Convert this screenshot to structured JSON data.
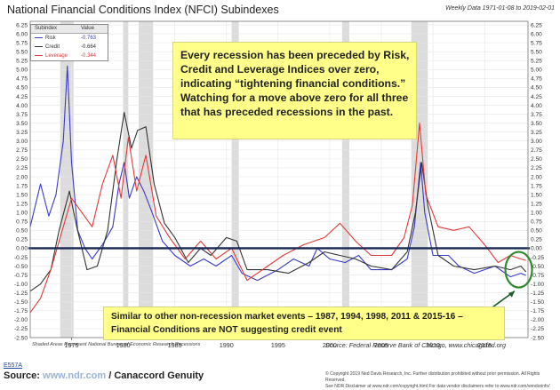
{
  "header": {
    "title": "National Financial Conditions Index (NFCI) Subindexes",
    "date_range": "Weekly Data 1971-01-08 to 2019-02-01"
  },
  "legend": {
    "col_subindex": "Subindex",
    "col_value": "Value",
    "rows": [
      {
        "name": "Risk",
        "value": "-0.763",
        "color": "#3a3ac8"
      },
      {
        "name": "Credit",
        "value": "-0.664",
        "color": "#333333"
      },
      {
        "name": "Leverage",
        "value": "-0.344",
        "color": "#e03a3a"
      }
    ]
  },
  "annotations": {
    "top_note": "Every recession has been preceded by Risk, Credit and Leverage Indices over zero, indicating “tightening financial conditions.”  Watching for a move above zero for all three that has preceded recessions in the past.",
    "bottom_note": "Similar to other non-recession market events – 1987, 1994, 1998, 2011 & 2015-16 – Financial Conditions are NOT suggesting credit event",
    "shaded_note": "Shaded Areas Represent National Bureau of Economic Research Recessions",
    "chart_source": "Source:   Federal Reserve Bank of Chicago, www.chicagofed.org"
  },
  "footer": {
    "code": "E557A",
    "source_label": "Source:",
    "source_link": "www.ndr.com",
    "source_rest": "/ Canaccord Genuity",
    "copyright_1": "© Copyright 2019 Ned Davis Research, Inc. Further distribution prohibited without prior permission. All Rights Reserved.",
    "copyright_2": "See NDR Disclaimer at www.ndr.com/copyright.html  For data vendor disclaimers refer to www.ndr.com/vendorinfo/"
  },
  "chart_data": {
    "type": "line",
    "x_ticks": [
      "1975",
      "1980",
      "1985",
      "1990",
      "1995",
      "2000",
      "2005",
      "2010",
      "2015"
    ],
    "y_ticks": [
      "6.25",
      "6.00",
      "5.75",
      "5.50",
      "5.25",
      "5.00",
      "4.75",
      "4.50",
      "4.25",
      "4.00",
      "3.75",
      "3.50",
      "3.25",
      "3.00",
      "2.75",
      "2.50",
      "2.25",
      "2.00",
      "1.75",
      "1.50",
      "1.25",
      "1.00",
      "0.75",
      "0.50",
      "0.25",
      "0.00",
      "-0.25",
      "-0.50",
      "-0.75",
      "-1.00",
      "-1.25",
      "-1.50",
      "-1.75",
      "-2.00",
      "-2.25",
      "-2.50"
    ],
    "xlim": [
      1971,
      2019.2
    ],
    "ylim": [
      -2.5,
      6.35
    ],
    "zero_line": 0,
    "grid": true,
    "recessions": [
      [
        1973.9,
        1975.2
      ],
      [
        1980.0,
        1980.5
      ],
      [
        1981.5,
        1982.9
      ],
      [
        1990.5,
        1991.2
      ],
      [
        2001.2,
        2001.9
      ],
      [
        2007.9,
        2009.5
      ]
    ],
    "series": [
      {
        "name": "Risk",
        "color": "#3a3ac8",
        "points": [
          [
            1971,
            0.6
          ],
          [
            1972,
            1.8
          ],
          [
            1972.8,
            0.9
          ],
          [
            1973.5,
            1.5
          ],
          [
            1974.2,
            3.0
          ],
          [
            1974.6,
            5.1
          ],
          [
            1975,
            2.4
          ],
          [
            1975.6,
            0.5
          ],
          [
            1976.3,
            0.0
          ],
          [
            1977,
            -0.3
          ],
          [
            1978,
            0.1
          ],
          [
            1979,
            0.6
          ],
          [
            1979.6,
            1.8
          ],
          [
            1980.1,
            2.4
          ],
          [
            1980.6,
            1.4
          ],
          [
            1981.3,
            2.0
          ],
          [
            1982,
            1.6
          ],
          [
            1982.8,
            1.0
          ],
          [
            1983.8,
            0.2
          ],
          [
            1985,
            -0.2
          ],
          [
            1986.5,
            -0.5
          ],
          [
            1987.8,
            -0.3
          ],
          [
            1989,
            -0.5
          ],
          [
            1990.5,
            -0.2
          ],
          [
            1991.5,
            -0.7
          ],
          [
            1993,
            -0.9
          ],
          [
            1995,
            -0.6
          ],
          [
            1996.5,
            -0.3
          ],
          [
            1998,
            -0.5
          ],
          [
            1998.8,
            0.0
          ],
          [
            2000,
            -0.3
          ],
          [
            2001.5,
            -0.4
          ],
          [
            2002.8,
            -0.2
          ],
          [
            2004,
            -0.6
          ],
          [
            2006,
            -0.6
          ],
          [
            2007.5,
            -0.3
          ],
          [
            2008.2,
            0.6
          ],
          [
            2008.8,
            2.4
          ],
          [
            2009.2,
            1.0
          ],
          [
            2010,
            -0.2
          ],
          [
            2011.5,
            -0.2
          ],
          [
            2012.5,
            -0.5
          ],
          [
            2014,
            -0.7
          ],
          [
            2016,
            -0.5
          ],
          [
            2017.5,
            -0.8
          ],
          [
            2018.5,
            -0.7
          ],
          [
            2019,
            -0.76
          ]
        ]
      },
      {
        "name": "Credit",
        "color": "#333333",
        "points": [
          [
            1971,
            -1.2
          ],
          [
            1972,
            -1.0
          ],
          [
            1973,
            -0.6
          ],
          [
            1973.8,
            0.5
          ],
          [
            1974.8,
            1.6
          ],
          [
            1975.5,
            0.6
          ],
          [
            1976.5,
            -0.6
          ],
          [
            1977.5,
            -0.5
          ],
          [
            1978.5,
            0.5
          ],
          [
            1979.4,
            2.5
          ],
          [
            1980.1,
            3.8
          ],
          [
            1980.8,
            2.8
          ],
          [
            1981.4,
            3.3
          ],
          [
            1982.2,
            3.4
          ],
          [
            1983,
            1.8
          ],
          [
            1984,
            0.7
          ],
          [
            1985,
            0.3
          ],
          [
            1986.3,
            -0.4
          ],
          [
            1987.5,
            0.0
          ],
          [
            1988.5,
            -0.2
          ],
          [
            1990,
            0.3
          ],
          [
            1991,
            0.2
          ],
          [
            1992,
            -0.6
          ],
          [
            1994,
            -0.6
          ],
          [
            1996,
            -0.7
          ],
          [
            1998,
            -0.4
          ],
          [
            1999.5,
            -0.1
          ],
          [
            2001,
            -0.2
          ],
          [
            2002.5,
            -0.3
          ],
          [
            2004,
            -0.5
          ],
          [
            2006,
            -0.6
          ],
          [
            2007.5,
            -0.1
          ],
          [
            2008.3,
            1.0
          ],
          [
            2008.9,
            2.4
          ],
          [
            2009.5,
            1.2
          ],
          [
            2010.5,
            -0.2
          ],
          [
            2012,
            -0.5
          ],
          [
            2014,
            -0.6
          ],
          [
            2016,
            -0.5
          ],
          [
            2017.5,
            -0.6
          ],
          [
            2018.5,
            -0.5
          ],
          [
            2019,
            -0.66
          ]
        ]
      },
      {
        "name": "Leverage",
        "color": "#e03a3a",
        "points": [
          [
            1971,
            -1.8
          ],
          [
            1972,
            -1.4
          ],
          [
            1973,
            -0.6
          ],
          [
            1974,
            0.4
          ],
          [
            1975,
            1.4
          ],
          [
            1976,
            1.0
          ],
          [
            1977,
            0.6
          ],
          [
            1978,
            1.8
          ],
          [
            1979,
            2.6
          ],
          [
            1979.8,
            1.4
          ],
          [
            1980.5,
            3.1
          ],
          [
            1981.3,
            1.6
          ],
          [
            1982.2,
            2.6
          ],
          [
            1983.2,
            0.9
          ],
          [
            1984.5,
            0.3
          ],
          [
            1986,
            -0.3
          ],
          [
            1987.5,
            0.2
          ],
          [
            1989,
            -0.3
          ],
          [
            1990.5,
            0.0
          ],
          [
            1992,
            -0.9
          ],
          [
            1994,
            -0.5
          ],
          [
            1995.5,
            -0.2
          ],
          [
            1997.5,
            0.1
          ],
          [
            1999.5,
            0.3
          ],
          [
            2001,
            0.7
          ],
          [
            2002.5,
            0.2
          ],
          [
            2004,
            -0.2
          ],
          [
            2006,
            -0.2
          ],
          [
            2007.2,
            0.3
          ],
          [
            2008,
            1.2
          ],
          [
            2008.7,
            3.5
          ],
          [
            2009.3,
            1.5
          ],
          [
            2010.5,
            0.6
          ],
          [
            2012,
            0.5
          ],
          [
            2013.5,
            0.6
          ],
          [
            2015,
            0.1
          ],
          [
            2016.3,
            -0.4
          ],
          [
            2017.5,
            -0.2
          ],
          [
            2018.5,
            -0.3
          ],
          [
            2019,
            -0.34
          ]
        ]
      }
    ]
  }
}
